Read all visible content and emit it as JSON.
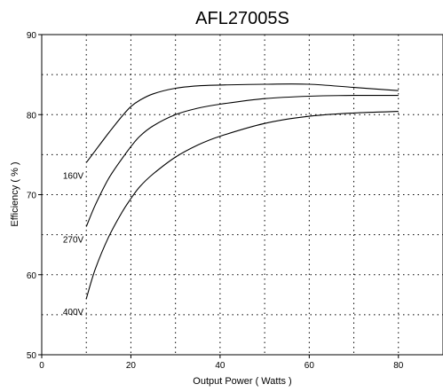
{
  "chart_data": {
    "type": "line",
    "title": "AFL27005S",
    "xlabel": "Output Power ( Watts )",
    "ylabel": "Efficiency ( % )",
    "xlim": [
      0,
      90
    ],
    "ylim": [
      50,
      90
    ],
    "x_ticks": [
      0,
      20,
      40,
      60,
      80
    ],
    "y_ticks": [
      50,
      60,
      70,
      80,
      90
    ],
    "grid": "dotted",
    "series": [
      {
        "name": "160V",
        "x": [
          10,
          12,
          15,
          18,
          20,
          22,
          25,
          30,
          35,
          40,
          50,
          60,
          70,
          80
        ],
        "values": [
          74,
          75.5,
          77.7,
          79.8,
          81,
          81.8,
          82.6,
          83.3,
          83.6,
          83.7,
          83.8,
          83.8,
          83.4,
          83.0
        ]
      },
      {
        "name": "270V",
        "x": [
          10,
          12,
          15,
          18,
          20,
          22,
          25,
          30,
          35,
          40,
          50,
          60,
          70,
          80
        ],
        "values": [
          66,
          68.7,
          72,
          74.5,
          76,
          77.3,
          78.6,
          80,
          80.8,
          81.3,
          82,
          82.3,
          82.4,
          82.4
        ]
      },
      {
        "name": "400V",
        "x": [
          10,
          12,
          15,
          18,
          20,
          22,
          25,
          30,
          35,
          40,
          50,
          60,
          70,
          80
        ],
        "values": [
          57,
          60.7,
          64.7,
          67.8,
          69.5,
          71,
          72.6,
          74.7,
          76.2,
          77.3,
          78.9,
          79.8,
          80.2,
          80.4
        ]
      }
    ]
  }
}
